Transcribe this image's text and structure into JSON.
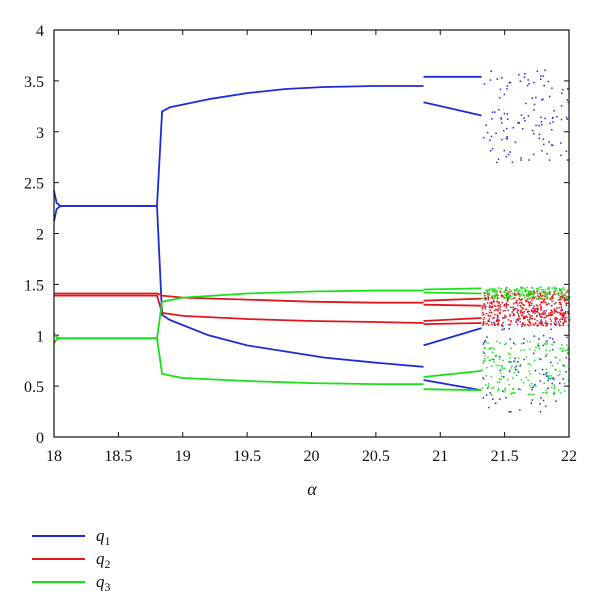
{
  "chart_data": {
    "type": "scatter",
    "title": "",
    "xlabel": "α",
    "ylabel": "",
    "xlim": [
      18,
      22
    ],
    "ylim": [
      0,
      4
    ],
    "xticks": [
      18,
      18.5,
      19,
      19.5,
      20,
      20.5,
      21,
      21.5,
      22
    ],
    "yticks": [
      0,
      0.5,
      1,
      1.5,
      2,
      2.5,
      3,
      3.5,
      4
    ],
    "xtick_labels": [
      "18",
      "18.5",
      "19",
      "19.5",
      "20",
      "20.5",
      "21",
      "21.5",
      "22"
    ],
    "ytick_labels": [
      "0",
      "0.5",
      "1",
      "1.5",
      "2",
      "2.5",
      "3",
      "3.5",
      "4"
    ],
    "grid": false,
    "legend_position": "bottom-left, below plot",
    "series": [
      {
        "name": "q1",
        "legend_text": "q",
        "legend_sub": "1",
        "color": "#1f2bd6",
        "branches": [
          [
            [
              18.0,
              2.42
            ],
            [
              18.02,
              2.3
            ],
            [
              18.05,
              2.27
            ],
            [
              18.8,
              2.27
            ],
            [
              18.84,
              3.2
            ],
            [
              18.9,
              3.24
            ],
            [
              19.2,
              3.32
            ],
            [
              19.5,
              3.38
            ],
            [
              19.8,
              3.42
            ],
            [
              20.1,
              3.44
            ],
            [
              20.5,
              3.45
            ],
            [
              20.87,
              3.45
            ]
          ],
          [
            [
              18.0,
              2.12
            ],
            [
              18.02,
              2.24
            ],
            [
              18.05,
              2.27
            ],
            [
              18.8,
              2.27
            ],
            [
              18.84,
              1.2
            ],
            [
              18.9,
              1.15
            ],
            [
              19.2,
              1.0
            ],
            [
              19.5,
              0.9
            ],
            [
              19.8,
              0.84
            ],
            [
              20.1,
              0.78
            ],
            [
              20.5,
              0.73
            ],
            [
              20.87,
              0.69
            ]
          ],
          [
            [
              20.87,
              3.54
            ],
            [
              21.32,
              3.54
            ]
          ],
          [
            [
              20.87,
              3.29
            ],
            [
              21.32,
              3.16
            ]
          ],
          [
            [
              20.87,
              0.9
            ],
            [
              21.32,
              1.07
            ]
          ],
          [
            [
              20.87,
              0.56
            ],
            [
              21.32,
              0.46
            ]
          ]
        ],
        "chaos": {
          "x": [
            21.32,
            22.0
          ],
          "bands": [
            [
              2.7,
              3.62
            ],
            [
              0.25,
              1.3
            ]
          ],
          "density": 240
        }
      },
      {
        "name": "q2",
        "legend_text": "q",
        "legend_sub": "2",
        "color": "#e0161c",
        "branches": [
          [
            [
              18.0,
              1.41
            ],
            [
              18.8,
              1.41
            ],
            [
              18.84,
              1.39
            ],
            [
              19.0,
              1.37
            ],
            [
              19.5,
              1.35
            ],
            [
              20.0,
              1.33
            ],
            [
              20.5,
              1.32
            ],
            [
              20.87,
              1.32
            ]
          ],
          [
            [
              18.0,
              1.39
            ],
            [
              18.8,
              1.39
            ],
            [
              18.84,
              1.22
            ],
            [
              19.0,
              1.19
            ],
            [
              19.5,
              1.16
            ],
            [
              20.0,
              1.14
            ],
            [
              20.5,
              1.13
            ],
            [
              20.87,
              1.12
            ]
          ],
          [
            [
              20.87,
              1.34
            ],
            [
              21.32,
              1.36
            ]
          ],
          [
            [
              20.87,
              1.3
            ],
            [
              21.32,
              1.29
            ]
          ],
          [
            [
              20.87,
              1.14
            ],
            [
              21.32,
              1.17
            ]
          ],
          [
            [
              20.87,
              1.11
            ],
            [
              21.32,
              1.12
            ]
          ]
        ],
        "chaos": {
          "x": [
            21.32,
            22.0
          ],
          "bands": [
            [
              1.1,
              1.45
            ]
          ],
          "density": 520
        }
      },
      {
        "name": "q3",
        "legend_text": "q",
        "legend_sub": "3",
        "color": "#19e019",
        "branches": [
          [
            [
              18.0,
              1.02
            ],
            [
              18.02,
              0.98
            ],
            [
              18.05,
              0.97
            ],
            [
              18.8,
              0.97
            ],
            [
              18.84,
              1.33
            ],
            [
              19.0,
              1.37
            ],
            [
              19.5,
              1.41
            ],
            [
              20.0,
              1.43
            ],
            [
              20.5,
              1.44
            ],
            [
              20.87,
              1.44
            ]
          ],
          [
            [
              18.0,
              0.92
            ],
            [
              18.02,
              0.96
            ],
            [
              18.05,
              0.97
            ],
            [
              18.8,
              0.97
            ],
            [
              18.84,
              0.62
            ],
            [
              19.0,
              0.58
            ],
            [
              19.5,
              0.55
            ],
            [
              20.0,
              0.53
            ],
            [
              20.5,
              0.52
            ],
            [
              20.87,
              0.52
            ]
          ],
          [
            [
              20.87,
              1.45
            ],
            [
              21.32,
              1.46
            ]
          ],
          [
            [
              20.87,
              1.42
            ],
            [
              21.32,
              1.41
            ]
          ],
          [
            [
              20.87,
              0.59
            ],
            [
              21.32,
              0.65
            ]
          ],
          [
            [
              20.87,
              0.47
            ],
            [
              21.32,
              0.46
            ]
          ]
        ],
        "chaos": {
          "x": [
            21.32,
            22.0
          ],
          "bands": [
            [
              1.36,
              1.48
            ],
            [
              0.42,
              0.95
            ]
          ],
          "density": 360
        }
      }
    ]
  }
}
